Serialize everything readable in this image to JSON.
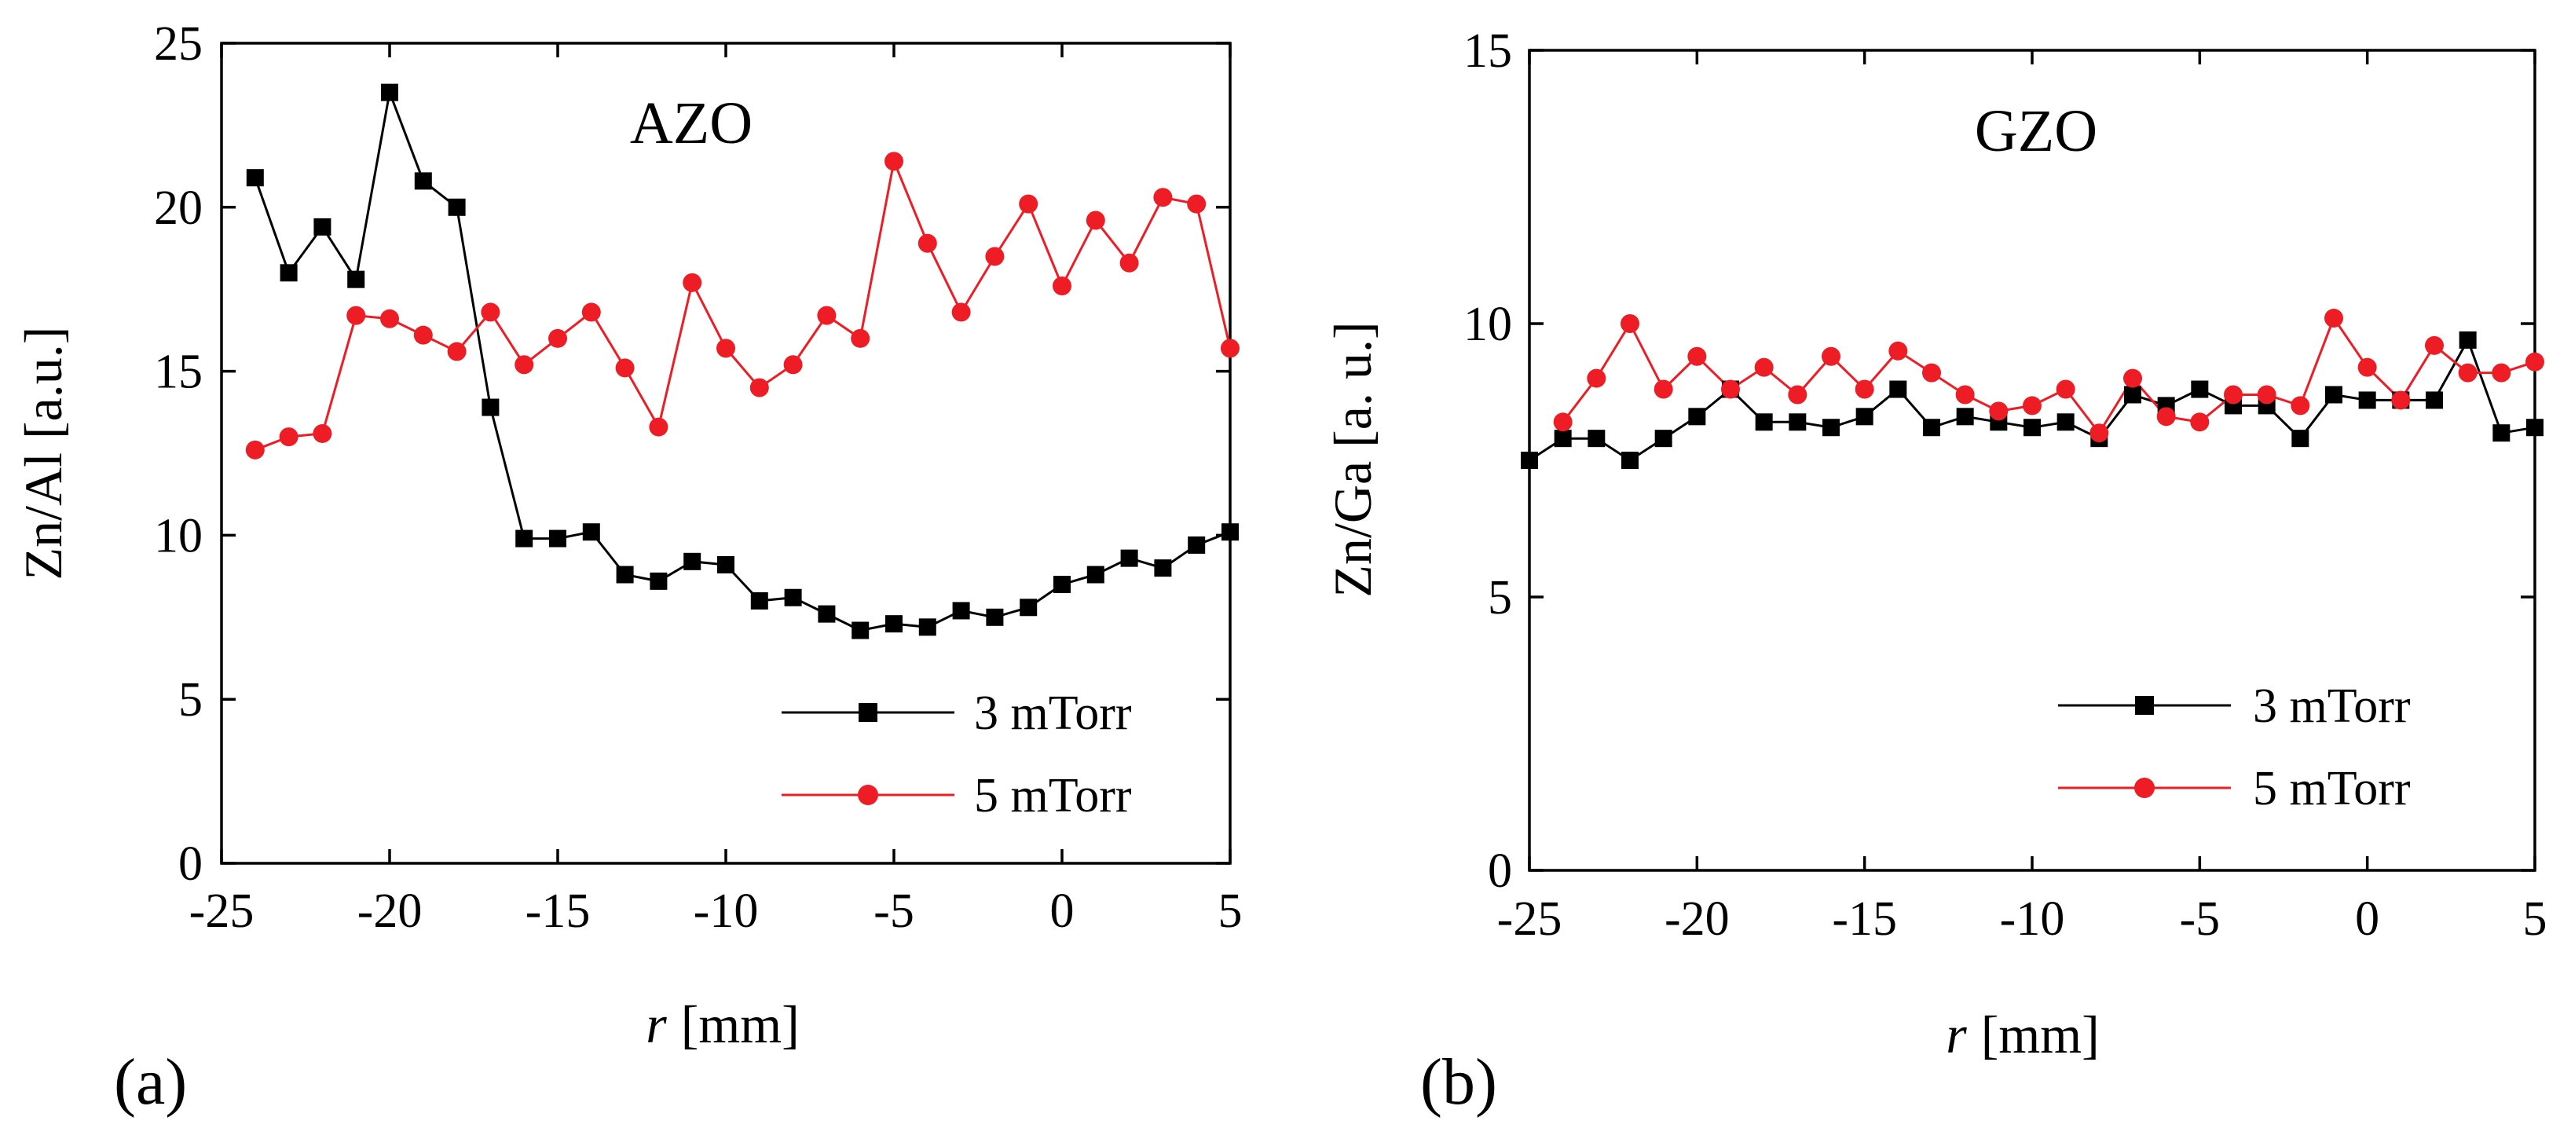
{
  "figure": {
    "colors": {
      "black": "#000000",
      "red": "#ee1c24"
    }
  },
  "chart_data": [
    {
      "type": "line",
      "panel_label": "(a)",
      "title": "AZO",
      "xlabel_var": "r",
      "xlabel_unit": "[mm]",
      "ylabel": "Zn/Al [a.u.]",
      "xlim": [
        -25,
        5
      ],
      "ylim": [
        0,
        25
      ],
      "xticks": [
        -25,
        -20,
        -15,
        -10,
        -5,
        0,
        5
      ],
      "yticks": [
        0,
        5,
        10,
        15,
        20,
        25
      ],
      "legend_position": "bottom-right",
      "series": [
        {
          "name": "3 mTorr",
          "color": "#000000",
          "marker": "square",
          "x": [
            -24,
            -23,
            -22,
            -21,
            -20,
            -19,
            -18,
            -17,
            -16,
            -15,
            -14,
            -13,
            -12,
            -11,
            -10,
            -9,
            -8,
            -7,
            -6,
            -5,
            -4,
            -3,
            -2,
            -1,
            0,
            1,
            2,
            3,
            4,
            5
          ],
          "y": [
            20.9,
            18.0,
            19.4,
            17.8,
            23.5,
            20.8,
            20.0,
            13.9,
            9.9,
            9.9,
            10.1,
            8.8,
            8.6,
            9.2,
            9.1,
            8.0,
            8.1,
            7.6,
            7.1,
            7.3,
            7.2,
            7.7,
            7.5,
            7.8,
            8.5,
            8.8,
            9.3,
            9.0,
            9.7,
            10.1
          ]
        },
        {
          "name": "5 mTorr",
          "color": "#ee1c24",
          "marker": "circle",
          "x": [
            -24,
            -23,
            -22,
            -21,
            -20,
            -19,
            -18,
            -17,
            -16,
            -15,
            -14,
            -13,
            -12,
            -11,
            -10,
            -9,
            -8,
            -7,
            -6,
            -5,
            -4,
            -3,
            -2,
            -1,
            0,
            1,
            2,
            3,
            4,
            5
          ],
          "y": [
            12.6,
            13.0,
            13.1,
            16.7,
            16.6,
            16.1,
            15.6,
            16.8,
            15.2,
            16.0,
            16.8,
            15.1,
            13.3,
            17.7,
            15.7,
            14.5,
            15.2,
            16.7,
            16.0,
            21.4,
            18.9,
            16.8,
            18.5,
            20.1,
            17.6,
            19.6,
            18.3,
            20.3,
            20.1,
            15.7
          ]
        }
      ]
    },
    {
      "type": "line",
      "panel_label": "(b)",
      "title": "GZO",
      "xlabel_var": "r",
      "xlabel_unit": "[mm]",
      "ylabel": "Zn/Ga [a. u.]",
      "xlim": [
        -25,
        5
      ],
      "ylim": [
        0,
        15
      ],
      "xticks": [
        -25,
        -20,
        -15,
        -10,
        -5,
        0,
        5
      ],
      "yticks": [
        0,
        5,
        10,
        15
      ],
      "legend_position": "bottom-right",
      "series": [
        {
          "name": "3 mTorr",
          "color": "#000000",
          "marker": "square",
          "x": [
            -25,
            -24,
            -23,
            -22,
            -21,
            -20,
            -19,
            -18,
            -17,
            -16,
            -15,
            -14,
            -13,
            -12,
            -11,
            -10,
            -9,
            -8,
            -7,
            -6,
            -5,
            -4,
            -3,
            -2,
            -1,
            0,
            1,
            2,
            3,
            4,
            5
          ],
          "y": [
            7.5,
            7.9,
            7.9,
            7.5,
            7.9,
            8.3,
            8.8,
            8.2,
            8.2,
            8.1,
            8.3,
            8.8,
            8.1,
            8.3,
            8.2,
            8.1,
            8.2,
            7.9,
            8.7,
            8.5,
            8.8,
            8.5,
            8.5,
            7.9,
            8.7,
            8.6,
            8.6,
            8.6,
            9.7,
            8.0,
            8.1
          ]
        },
        {
          "name": "5 mTorr",
          "color": "#ee1c24",
          "marker": "circle",
          "x": [
            -24,
            -23,
            -22,
            -21,
            -20,
            -19,
            -18,
            -17,
            -16,
            -15,
            -14,
            -13,
            -12,
            -11,
            -10,
            -9,
            -8,
            -7,
            -6,
            -5,
            -4,
            -3,
            -2,
            -1,
            0,
            1,
            2,
            3,
            4,
            5
          ],
          "y": [
            8.2,
            9.0,
            10.0,
            8.8,
            9.4,
            8.8,
            9.2,
            8.7,
            9.4,
            8.8,
            9.5,
            9.1,
            8.7,
            8.4,
            8.5,
            8.8,
            8.0,
            9.0,
            8.3,
            8.2,
            8.7,
            8.7,
            8.5,
            10.1,
            9.2,
            8.6,
            9.6,
            9.1,
            9.1,
            9.3
          ]
        }
      ]
    }
  ]
}
